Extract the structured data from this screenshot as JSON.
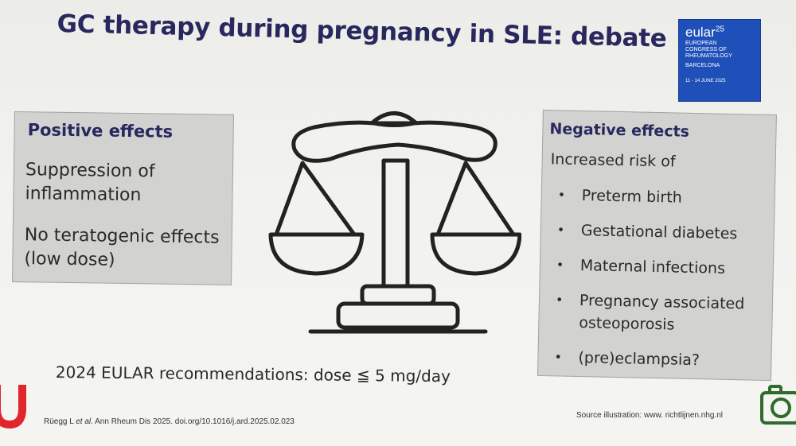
{
  "slide": {
    "title": "GC therapy during pregnancy in SLE: debate",
    "logo": {
      "brand": "eular",
      "edition": "25",
      "line1": "EUROPEAN",
      "line2": "CONGRESS OF",
      "line3": "RHEUMATOLOGY",
      "city": "BARCELONA",
      "dates": "11 - 14 JUNE 2025"
    },
    "positive": {
      "heading": "Positive effects",
      "items": [
        "Suppression of inflammation",
        "No teratogenic effects (low dose)"
      ]
    },
    "negative": {
      "heading": "Negative effects",
      "intro": "Increased risk of",
      "items": [
        "Preterm birth",
        "Gestational diabetes",
        "Maternal infections",
        "Pregnancy associated osteoporosis",
        "(pre)eclampsia?"
      ]
    },
    "recommendation": "2024 EULAR recommendations: dose ≦ 5 mg/day",
    "citation": {
      "authors": "Rüegg L",
      "etal": "et al.",
      "rest": "Ann Rheum Dis 2025. doi.org/10.1016/j.ard.2025.02.023"
    },
    "source": "Source illustration: www. richtlijnen.nhg.nl"
  },
  "colors": {
    "title": "#28285e",
    "box_fill": "#d2d2d0",
    "logo_blue": "#1f4fb8",
    "umc_red": "#e0262b"
  },
  "icons": [
    "balance-scale-icon",
    "camera-icon",
    "umc-logo"
  ]
}
